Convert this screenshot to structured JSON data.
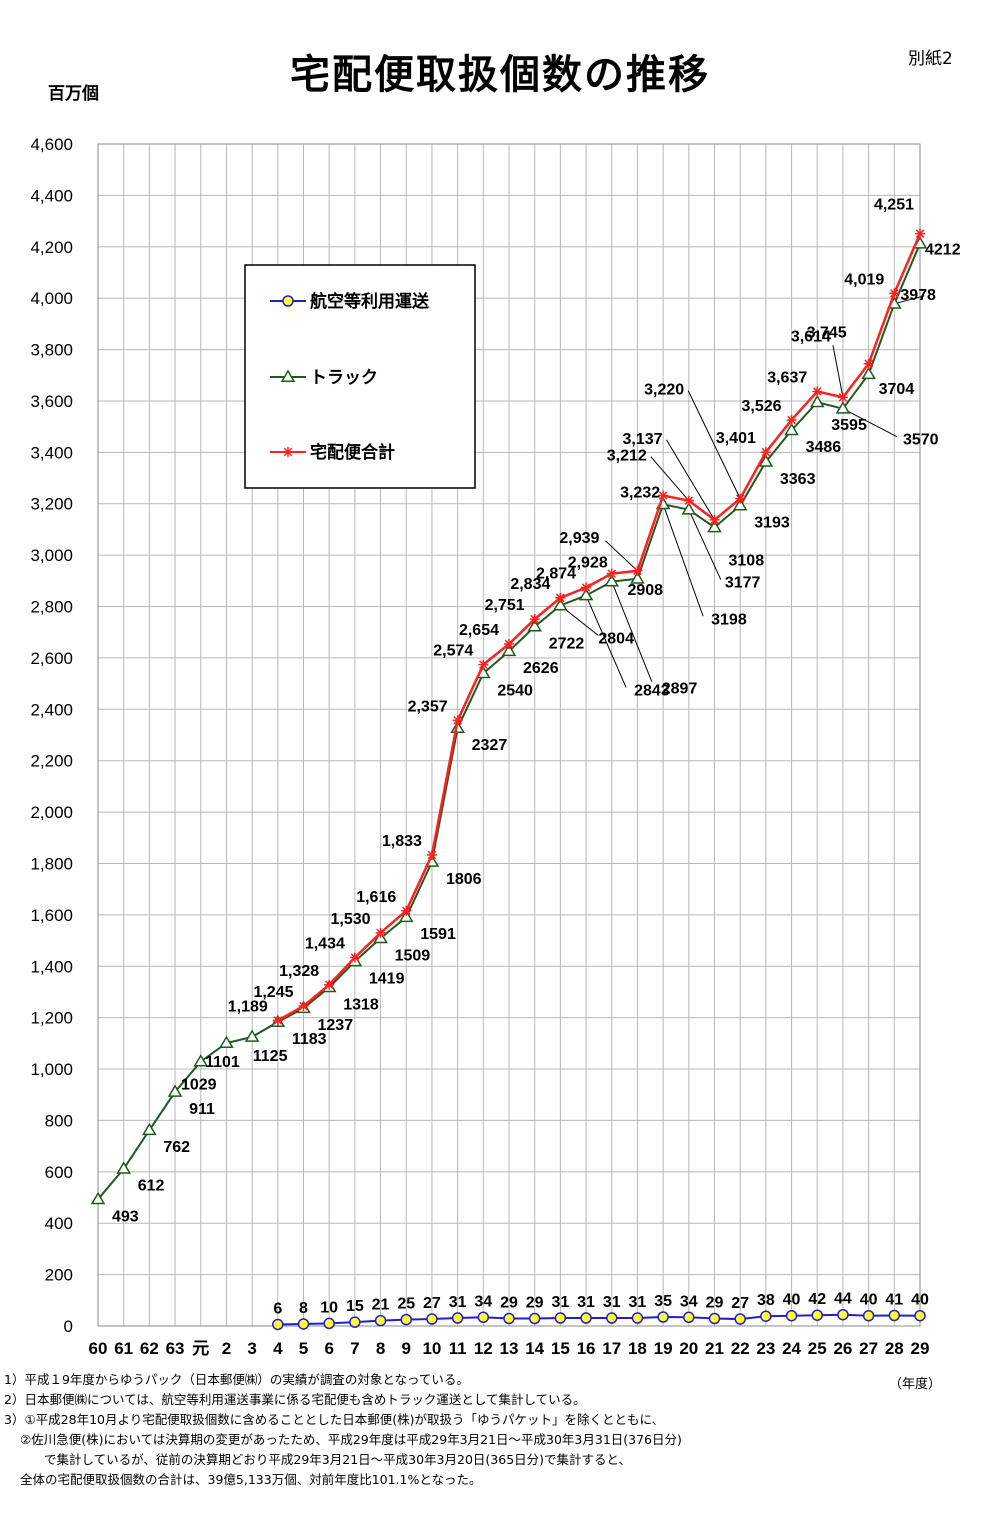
{
  "header": {
    "title": "宅配便取扱個数の推移",
    "attachment": "別紙2",
    "y_unit": "百万個"
  },
  "chart_data": {
    "type": "line",
    "title": "宅配便取扱個数の推移",
    "ylabel": "百万個",
    "xlabel": "（年度）",
    "ylim": [
      0,
      4600
    ],
    "yticks": [
      "0",
      "200",
      "400",
      "600",
      "800",
      "1,000",
      "1,200",
      "1,400",
      "1,600",
      "1,800",
      "2,000",
      "2,200",
      "2,400",
      "2,600",
      "2,800",
      "3,000",
      "3,200",
      "3,400",
      "3,600",
      "3,800",
      "4,000",
      "4,200",
      "4,400",
      "4,600"
    ],
    "categories": [
      "60",
      "61",
      "62",
      "63",
      "元",
      "2",
      "3",
      "4",
      "5",
      "6",
      "7",
      "8",
      "9",
      "10",
      "11",
      "12",
      "13",
      "14",
      "15",
      "16",
      "17",
      "18",
      "19",
      "20",
      "21",
      "22",
      "23",
      "24",
      "25",
      "26",
      "27",
      "28",
      "29"
    ],
    "grid": true,
    "legend_position": "top-left",
    "series": [
      {
        "name": "航空等利用運送",
        "color": "#1f1fd0",
        "marker": "circle-yellow",
        "values": [
          null,
          null,
          null,
          null,
          null,
          null,
          null,
          6,
          8,
          10,
          15,
          21,
          25,
          27,
          31,
          34,
          29,
          29,
          31,
          31,
          31,
          31,
          35,
          34,
          29,
          27,
          38,
          40,
          42,
          44,
          40,
          41,
          40
        ],
        "labels": [
          null,
          null,
          null,
          null,
          null,
          null,
          null,
          "6",
          "8",
          "10",
          "15",
          "21",
          "25",
          "27",
          "31",
          "34",
          "29",
          "29",
          "31",
          "31",
          "31",
          "31",
          "35",
          "34",
          "29",
          "27",
          "38",
          "40",
          "42",
          "44",
          "40",
          "41",
          "40"
        ]
      },
      {
        "name": "トラック",
        "color": "#1f5a1f",
        "marker": "triangle",
        "values": [
          493,
          612,
          762,
          911,
          1029,
          1101,
          1125,
          1183,
          1237,
          1318,
          1419,
          1509,
          1591,
          1806,
          2327,
          2540,
          2626,
          2722,
          2804,
          2843,
          2897,
          2908,
          3198,
          3177,
          3108,
          3193,
          3363,
          3486,
          3595,
          3570,
          3704,
          3978,
          4212
        ],
        "labels": [
          "493",
          "612",
          "762",
          "911",
          "1029",
          "1101",
          "1125",
          "1183",
          "1237",
          "1318",
          "1419",
          "1509",
          "1591",
          "1806",
          "2327",
          "2540",
          "2626",
          "2722",
          "2804",
          "2843",
          "2897",
          "2908",
          "3198",
          "3177",
          "3108",
          "3193",
          "3363",
          "3486",
          "3595",
          "3570",
          "3704",
          "3978",
          "4212"
        ]
      },
      {
        "name": "宅配便合計",
        "color": "#ff2020",
        "marker": "star",
        "values": [
          null,
          null,
          null,
          null,
          null,
          null,
          null,
          1189,
          1245,
          1328,
          1434,
          1530,
          1616,
          1833,
          2357,
          2574,
          2654,
          2751,
          2834,
          2874,
          2928,
          2939,
          3232,
          3212,
          3137,
          3220,
          3401,
          3526,
          3637,
          3614,
          3745,
          4019,
          4251
        ],
        "labels": [
          null,
          null,
          null,
          null,
          null,
          null,
          null,
          "1,189",
          "1,245",
          "1,328",
          "1,434",
          "1,530",
          "1,616",
          "1,833",
          "2,357",
          "2,574",
          "2,654",
          "2,751",
          "2,834",
          "2,874",
          "2,928",
          "2,939",
          "3,232",
          "3,212",
          "3,137",
          "3,220",
          "3,401",
          "3,526",
          "3,637",
          "3,614",
          "3,745",
          "4,019",
          "4,251"
        ]
      }
    ]
  },
  "notes": [
    "1）平成１9年度からゆうパック（日本郵便㈱）の実績が調査の対象となっている。",
    "2）日本郵便㈱については、航空等利用運送事業に係る宅配便も含めトラック運送として集計している。",
    "3）①平成28年10月より宅配便取扱個数に含めることとした日本郵便(株)が取扱う「ゆうパケット」を除くとともに、",
    "②佐川急便(株)においては決算期の変更があったため、平成29年度は平成29年3月21日～平成30年3月31日(376日分)",
    "で集計しているが、従前の決算期どおり平成29年3月21日～平成30年3月20日(365日分)で集計すると、",
    "全体の宅配便取扱個数の合計は、39億5,133万個、対前年度比101.1%となった。"
  ]
}
